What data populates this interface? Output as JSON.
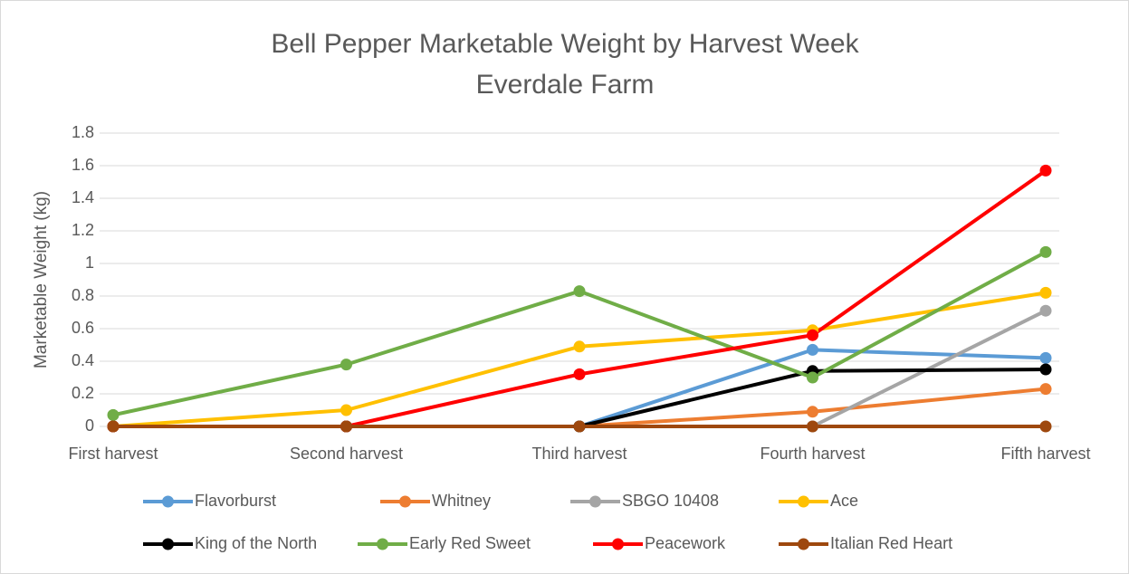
{
  "chart_data": {
    "type": "line",
    "title": "Bell Pepper Marketable Weight by Harvest Week",
    "subtitle": "Everdale Farm",
    "y_label": "Marketable Weight (kg)",
    "categories": [
      "First harvest",
      "Second harvest",
      "Third harvest",
      "Fourth harvest",
      "Fifth harvest"
    ],
    "series": [
      {
        "name": "Flavorburst",
        "color": "#5b9bd5",
        "values": [
          0,
          0,
          0,
          0.47,
          0.42
        ]
      },
      {
        "name": "Whitney",
        "color": "#ed7d31",
        "values": [
          0,
          0,
          0,
          0.09,
          0.23
        ]
      },
      {
        "name": "SBGO 10408",
        "color": "#a5a5a5",
        "values": [
          0,
          0,
          0,
          0,
          0.71
        ]
      },
      {
        "name": "Ace",
        "color": "#ffc000",
        "values": [
          0,
          0.1,
          0.49,
          0.59,
          0.82
        ]
      },
      {
        "name": "King of the North",
        "color": "#000000",
        "values": [
          0,
          0,
          0,
          0.34,
          0.35
        ]
      },
      {
        "name": "Early Red Sweet",
        "color": "#70ad47",
        "values": [
          0.07,
          0.38,
          0.83,
          0.3,
          1.07
        ]
      },
      {
        "name": "Peacework",
        "color": "#ff0000",
        "values": [
          0,
          0,
          0.32,
          0.56,
          1.57
        ]
      },
      {
        "name": "Italian Red Heart",
        "color": "#9e480e",
        "values": [
          0,
          0,
          0,
          0,
          0
        ]
      }
    ],
    "ylim": [
      0,
      1.8
    ],
    "yticks": [
      0,
      0.2,
      0.4,
      0.6,
      0.8,
      1,
      1.2,
      1.4,
      1.6,
      1.8
    ],
    "grid": true,
    "legend": "bottom"
  }
}
